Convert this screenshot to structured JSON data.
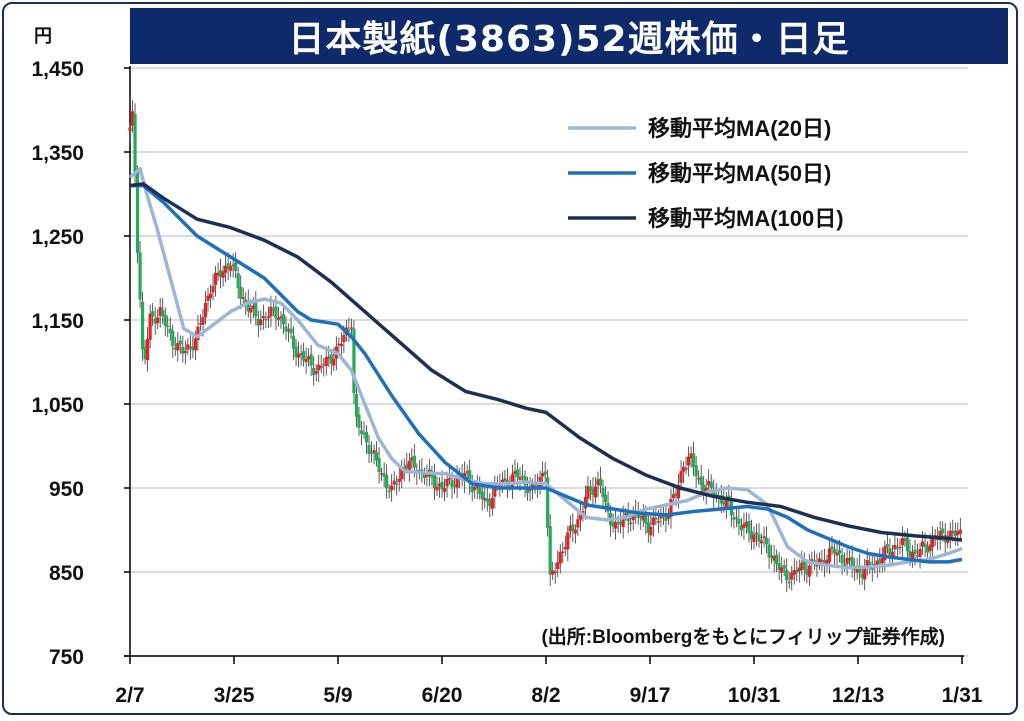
{
  "title": "日本製紙(3863)52週株価・日足",
  "source": "(出所:Bloombergをもとにフィリップ証券作成)",
  "colors": {
    "title_bg": "#0e2a6a",
    "up": "#e52222",
    "down": "#22aa55",
    "ma20": "#9db6d8",
    "ma50": "#1f6fbf",
    "ma100": "#1d2f52",
    "grid": "#d0d0d0",
    "axis": "#000000"
  },
  "chart_data": {
    "type": "line",
    "ylabel": "円",
    "ylim": [
      750,
      1450
    ],
    "yticks": [
      1450,
      1350,
      1250,
      1150,
      1050,
      950,
      850,
      750
    ],
    "ytick_labels": [
      "1,450",
      "1,350",
      "1,250",
      "1,150",
      "1,050",
      "950",
      "850",
      "750"
    ],
    "xticks": [
      0,
      31,
      62,
      93,
      124,
      155,
      186,
      217,
      248
    ],
    "xtick_labels": [
      "2/7",
      "3/25",
      "5/9",
      "6/20",
      "8/2",
      "9/17",
      "10/31",
      "12/13",
      "1/31"
    ],
    "grid": true,
    "legend_position": "top-right",
    "price_knots": [
      [
        0,
        1375
      ],
      [
        1,
        1395
      ],
      [
        2,
        1260
      ],
      [
        4,
        1090
      ],
      [
        6,
        1150
      ],
      [
        9,
        1160
      ],
      [
        12,
        1130
      ],
      [
        16,
        1110
      ],
      [
        20,
        1130
      ],
      [
        24,
        1190
      ],
      [
        30,
        1220
      ],
      [
        33,
        1180
      ],
      [
        38,
        1150
      ],
      [
        44,
        1160
      ],
      [
        50,
        1110
      ],
      [
        56,
        1090
      ],
      [
        62,
        1115
      ],
      [
        66,
        1150
      ],
      [
        67,
        1030
      ],
      [
        70,
        1010
      ],
      [
        74,
        975
      ],
      [
        78,
        945
      ],
      [
        82,
        980
      ],
      [
        85,
        975
      ],
      [
        90,
        960
      ],
      [
        93,
        950
      ],
      [
        97,
        960
      ],
      [
        100,
        965
      ],
      [
        104,
        945
      ],
      [
        106,
        930
      ],
      [
        110,
        955
      ],
      [
        116,
        965
      ],
      [
        120,
        945
      ],
      [
        124,
        975
      ],
      [
        125,
        835
      ],
      [
        128,
        870
      ],
      [
        131,
        895
      ],
      [
        134,
        915
      ],
      [
        136,
        940
      ],
      [
        138,
        950
      ],
      [
        140,
        960
      ],
      [
        142,
        920
      ],
      [
        145,
        905
      ],
      [
        150,
        920
      ],
      [
        155,
        905
      ],
      [
        160,
        920
      ],
      [
        163,
        945
      ],
      [
        165,
        980
      ],
      [
        167,
        985
      ],
      [
        170,
        955
      ],
      [
        174,
        945
      ],
      [
        178,
        930
      ],
      [
        182,
        905
      ],
      [
        186,
        895
      ],
      [
        190,
        880
      ],
      [
        194,
        850
      ],
      [
        197,
        845
      ],
      [
        200,
        855
      ],
      [
        205,
        860
      ],
      [
        210,
        875
      ],
      [
        214,
        860
      ],
      [
        218,
        850
      ],
      [
        222,
        860
      ],
      [
        226,
        875
      ],
      [
        230,
        885
      ],
      [
        234,
        870
      ],
      [
        237,
        880
      ],
      [
        240,
        890
      ],
      [
        244,
        895
      ],
      [
        248,
        895
      ]
    ],
    "series": [
      {
        "name": "移動平均MA(20日)",
        "points": [
          [
            0,
            1320
          ],
          [
            3,
            1330
          ],
          [
            5,
            1300
          ],
          [
            8,
            1260
          ],
          [
            12,
            1200
          ],
          [
            16,
            1140
          ],
          [
            20,
            1130
          ],
          [
            25,
            1145
          ],
          [
            30,
            1160
          ],
          [
            35,
            1170
          ],
          [
            40,
            1175
          ],
          [
            45,
            1170
          ],
          [
            50,
            1150
          ],
          [
            56,
            1120
          ],
          [
            62,
            1110
          ],
          [
            66,
            1090
          ],
          [
            70,
            1050
          ],
          [
            74,
            1010
          ],
          [
            78,
            985
          ],
          [
            82,
            970
          ],
          [
            88,
            968
          ],
          [
            94,
            967
          ],
          [
            100,
            960
          ],
          [
            106,
            955
          ],
          [
            112,
            955
          ],
          [
            118,
            957
          ],
          [
            124,
            955
          ],
          [
            130,
            935
          ],
          [
            136,
            915
          ],
          [
            142,
            912
          ],
          [
            148,
            915
          ],
          [
            154,
            925
          ],
          [
            160,
            930
          ],
          [
            166,
            935
          ],
          [
            172,
            945
          ],
          [
            178,
            950
          ],
          [
            184,
            948
          ],
          [
            190,
            930
          ],
          [
            196,
            880
          ],
          [
            202,
            862
          ],
          [
            208,
            858
          ],
          [
            214,
            855
          ],
          [
            220,
            856
          ],
          [
            226,
            858
          ],
          [
            232,
            862
          ],
          [
            238,
            865
          ],
          [
            244,
            872
          ],
          [
            248,
            878
          ]
        ]
      },
      {
        "name": "移動平均MA(50日)",
        "points": [
          [
            0,
            1310
          ],
          [
            4,
            1310
          ],
          [
            10,
            1290
          ],
          [
            20,
            1250
          ],
          [
            30,
            1225
          ],
          [
            40,
            1200
          ],
          [
            50,
            1160
          ],
          [
            54,
            1150
          ],
          [
            62,
            1145
          ],
          [
            66,
            1130
          ],
          [
            70,
            1110
          ],
          [
            78,
            1060
          ],
          [
            86,
            1015
          ],
          [
            94,
            980
          ],
          [
            102,
            955
          ],
          [
            110,
            950
          ],
          [
            118,
            950
          ],
          [
            124,
            950
          ],
          [
            130,
            940
          ],
          [
            136,
            930
          ],
          [
            144,
            925
          ],
          [
            152,
            920
          ],
          [
            160,
            918
          ],
          [
            168,
            922
          ],
          [
            176,
            925
          ],
          [
            184,
            928
          ],
          [
            190,
            925
          ],
          [
            196,
            915
          ],
          [
            202,
            900
          ],
          [
            208,
            890
          ],
          [
            214,
            880
          ],
          [
            220,
            872
          ],
          [
            226,
            868
          ],
          [
            232,
            865
          ],
          [
            238,
            862
          ],
          [
            244,
            862
          ],
          [
            248,
            865
          ]
        ]
      },
      {
        "name": "移動平均MA(100日)",
        "points": [
          [
            0,
            1310
          ],
          [
            4,
            1312
          ],
          [
            10,
            1295
          ],
          [
            20,
            1270
          ],
          [
            30,
            1260
          ],
          [
            40,
            1245
          ],
          [
            50,
            1225
          ],
          [
            60,
            1195
          ],
          [
            70,
            1160
          ],
          [
            80,
            1125
          ],
          [
            90,
            1090
          ],
          [
            100,
            1065
          ],
          [
            110,
            1055
          ],
          [
            118,
            1045
          ],
          [
            124,
            1040
          ],
          [
            134,
            1010
          ],
          [
            144,
            985
          ],
          [
            154,
            965
          ],
          [
            164,
            950
          ],
          [
            174,
            940
          ],
          [
            184,
            933
          ],
          [
            194,
            928
          ],
          [
            204,
            915
          ],
          [
            214,
            905
          ],
          [
            224,
            897
          ],
          [
            234,
            893
          ],
          [
            244,
            890
          ],
          [
            248,
            888
          ]
        ]
      }
    ]
  }
}
